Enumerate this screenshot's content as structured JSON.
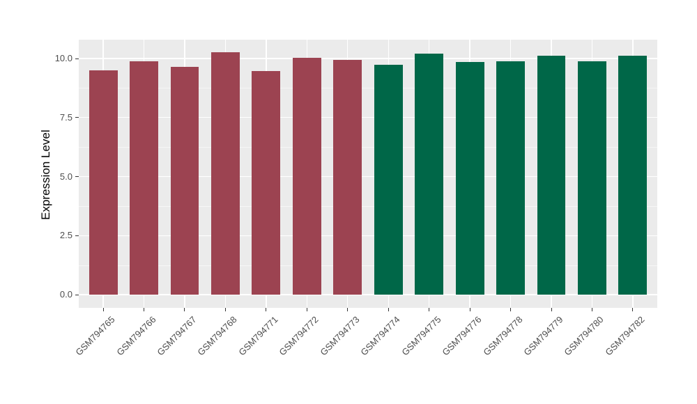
{
  "chart_data": {
    "type": "bar",
    "title": "",
    "xlabel": "",
    "ylabel": "Expression Level",
    "categories": [
      "GSM794765",
      "GSM794766",
      "GSM794767",
      "GSM794768",
      "GSM794771",
      "GSM794772",
      "GSM794773",
      "GSM794774",
      "GSM794775",
      "GSM794776",
      "GSM794778",
      "GSM794779",
      "GSM794780",
      "GSM794782"
    ],
    "values": [
      9.5,
      9.89,
      9.64,
      10.28,
      9.48,
      10.04,
      9.95,
      9.74,
      10.2,
      9.84,
      9.87,
      10.12,
      9.87,
      10.11
    ],
    "bar_colors": [
      "#9C4351",
      "#9C4351",
      "#9C4351",
      "#9C4351",
      "#9C4351",
      "#9C4351",
      "#9C4351",
      "#006748",
      "#006748",
      "#006748",
      "#006748",
      "#006748",
      "#006748",
      "#006748"
    ],
    "group_colors": {
      "left_group": "#9C4351",
      "right_group": "#006748"
    },
    "yticks": [
      0,
      2.5,
      5,
      7.5,
      10
    ],
    "ytick_labels": [
      "0.0",
      "2.5",
      "5.0",
      "7.5",
      "10.0"
    ],
    "yminor": [
      1.25,
      3.75,
      6.25,
      8.75
    ],
    "ylim": [
      0,
      10.8
    ],
    "grid": true,
    "legend": null,
    "x_label_angle_deg": -45
  },
  "style": {
    "panel_bg": "#EBEBEB",
    "grid_major_color": "#FFFFFF",
    "grid_minor_color": "#FFFFFF",
    "tick_mark_color": "#333333",
    "tick_label_color": "#4D4D4D",
    "axis_title_color": "#000000",
    "background": "#FFFFFF"
  }
}
